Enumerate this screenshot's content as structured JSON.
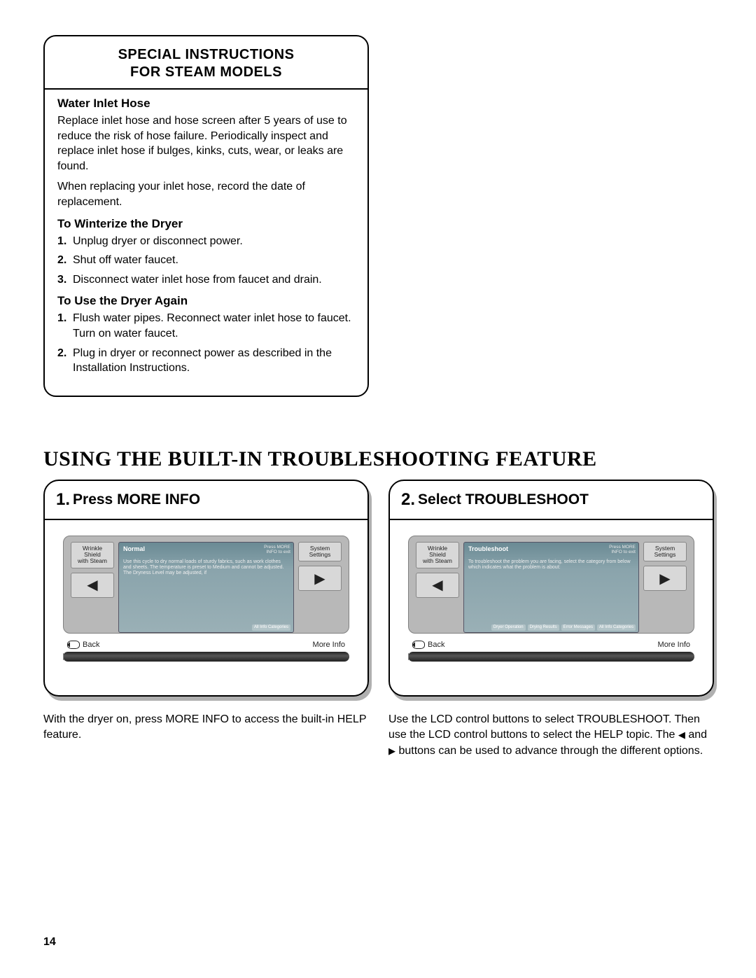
{
  "instructions": {
    "title_line1": "SPECIAL INSTRUCTIONS",
    "title_line2": "FOR STEAM MODELS",
    "sections": [
      {
        "heading": "Water Inlet Hose",
        "paragraphs": [
          "Replace inlet hose and hose screen after 5 years of use to reduce the risk of hose failure. Periodically inspect and replace inlet hose if bulges, kinks, cuts, wear, or leaks are found.",
          "When replacing your inlet hose, record the date of replacement."
        ]
      },
      {
        "heading": "To Winterize the Dryer",
        "steps": [
          "Unplug dryer or disconnect power.",
          "Shut off water faucet.",
          "Disconnect water inlet hose from faucet and drain."
        ]
      },
      {
        "heading": "To Use the Dryer Again",
        "steps": [
          "Flush water pipes. Reconnect water inlet hose to faucet. Turn on water faucet.",
          "Plug in dryer or reconnect power as described in the Installation Instructions."
        ]
      }
    ]
  },
  "section_title": "USING THE BUILT-IN TROUBLESHOOTING FEATURE",
  "panels": [
    {
      "num": "1.",
      "title": "Press MORE INFO",
      "left_label": "Wrinkle\nShield\nwith Steam",
      "right_label": "System\nSettings",
      "screen_title": "Normal",
      "screen_hint": "Press MORE\nINFO to exit",
      "screen_body": "Use this cycle to dry normal loads of sturdy fabrics, such as work clothes and sheets. The temperature is preset to Medium and cannot be adjusted. The Dryness Level may be adjusted, if",
      "screen_tabs": [
        "All Info Categories"
      ],
      "back_label": "Back",
      "more_label": "More Info",
      "caption": "With the dryer on, press MORE INFO to access the built-in HELP feature."
    },
    {
      "num": "2.",
      "title": "Select TROUBLESHOOT",
      "left_label": "Wrinkle\nShield\nwith Steam",
      "right_label": "System\nSettings",
      "screen_title": "Troubleshoot",
      "screen_hint": "Press MORE\nINFO to exit",
      "screen_body": "To troubleshoot the problem you are facing, select the category from below which indicates what the problem is about:",
      "screen_tabs": [
        "Dryer Operation",
        "Drying Results",
        "Error Messages",
        "All Info Categories"
      ],
      "back_label": "Back",
      "more_label": "More Info",
      "caption": "Use the LCD control buttons to select TROUBLESHOOT. Then use the LCD control buttons to select the HELP topic. The ◀ and ▶ buttons can be used to advance through the different options."
    }
  ],
  "page_number": "14",
  "colors": {
    "text": "#000000",
    "device_bg": "#b8b8b8",
    "screen_grad_top": "#6a8a94",
    "screen_grad_bot": "#9ab0b6",
    "shadow": "#b0b0b0"
  }
}
